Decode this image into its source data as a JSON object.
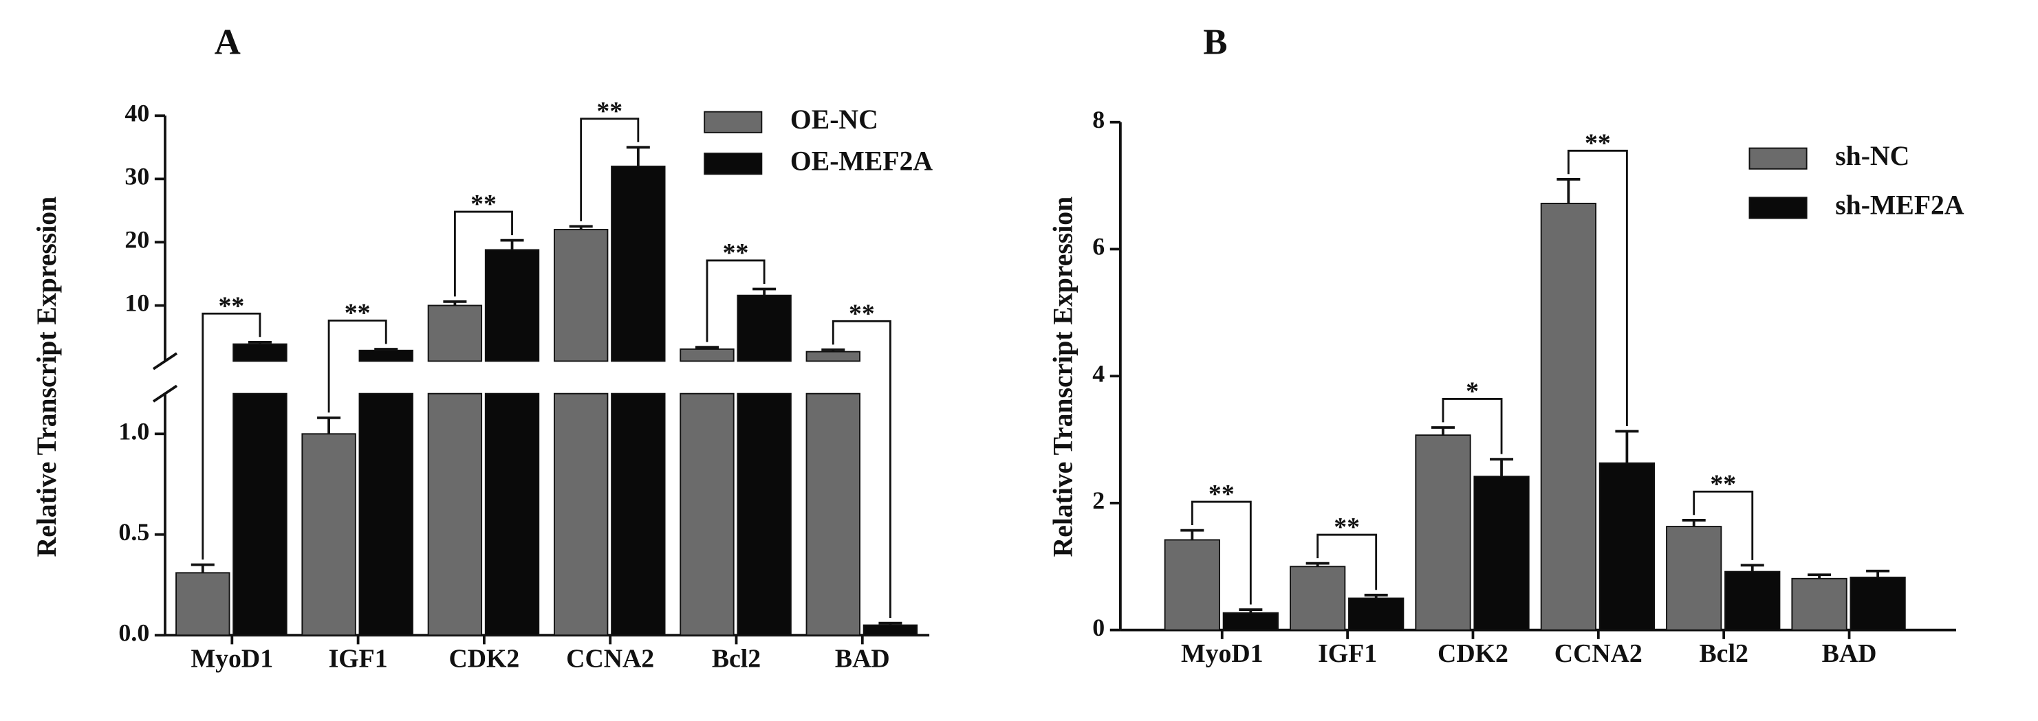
{
  "chart_data": [
    {
      "type": "bar",
      "title": "A",
      "y_label": "Relative Transcript Expression",
      "categories": [
        "MyoD1",
        "IGF1",
        "CDK2",
        "CCNA2",
        "Bcl2",
        "BAD"
      ],
      "series": [
        {
          "name": "OE-NC",
          "color": "#6b6b6b",
          "values": [
            0.31,
            1.0,
            10.0,
            22.0,
            3.1,
            2.7
          ],
          "errors": [
            0.04,
            0.08,
            0.6,
            0.5,
            0.3,
            0.3
          ]
        },
        {
          "name": "OE-MEF2A",
          "color": "#0a0a0a",
          "values": [
            3.9,
            2.9,
            18.8,
            32.0,
            11.6,
            0.05
          ],
          "errors": [
            0.3,
            0.2,
            1.5,
            3.0,
            1.0,
            0.01
          ]
        }
      ],
      "significance": [
        "**",
        "**",
        "**",
        "**",
        "**",
        "**"
      ],
      "ylim": [
        0,
        40
      ],
      "axis_break": 1.2,
      "yticks": [
        {
          "value": 0,
          "label": "0.0"
        },
        0.5,
        {
          "value": 1,
          "label": "1.0"
        },
        10,
        20,
        30,
        40
      ]
    },
    {
      "type": "bar",
      "title": "B",
      "y_label": "Relative Transcript Expression",
      "categories": [
        "MyoD1",
        "IGF1",
        "CDK2",
        "CCNA2",
        "Bcl2",
        "BAD"
      ],
      "series": [
        {
          "name": "sh-NC",
          "color": "#6b6b6b",
          "values": [
            1.42,
            1.0,
            3.07,
            6.72,
            1.63,
            0.81
          ],
          "errors": [
            0.15,
            0.05,
            0.12,
            0.38,
            0.1,
            0.06
          ]
        },
        {
          "name": "sh-MEF2A",
          "color": "#0a0a0a",
          "values": [
            0.27,
            0.5,
            2.42,
            2.63,
            0.92,
            0.83
          ],
          "errors": [
            0.05,
            0.05,
            0.27,
            0.5,
            0.1,
            0.1
          ]
        }
      ],
      "significance": [
        "**",
        "**",
        "*",
        "**",
        "**",
        null
      ],
      "ylim": [
        0,
        8
      ],
      "yticks": [
        0,
        2,
        4,
        6,
        8
      ]
    }
  ]
}
